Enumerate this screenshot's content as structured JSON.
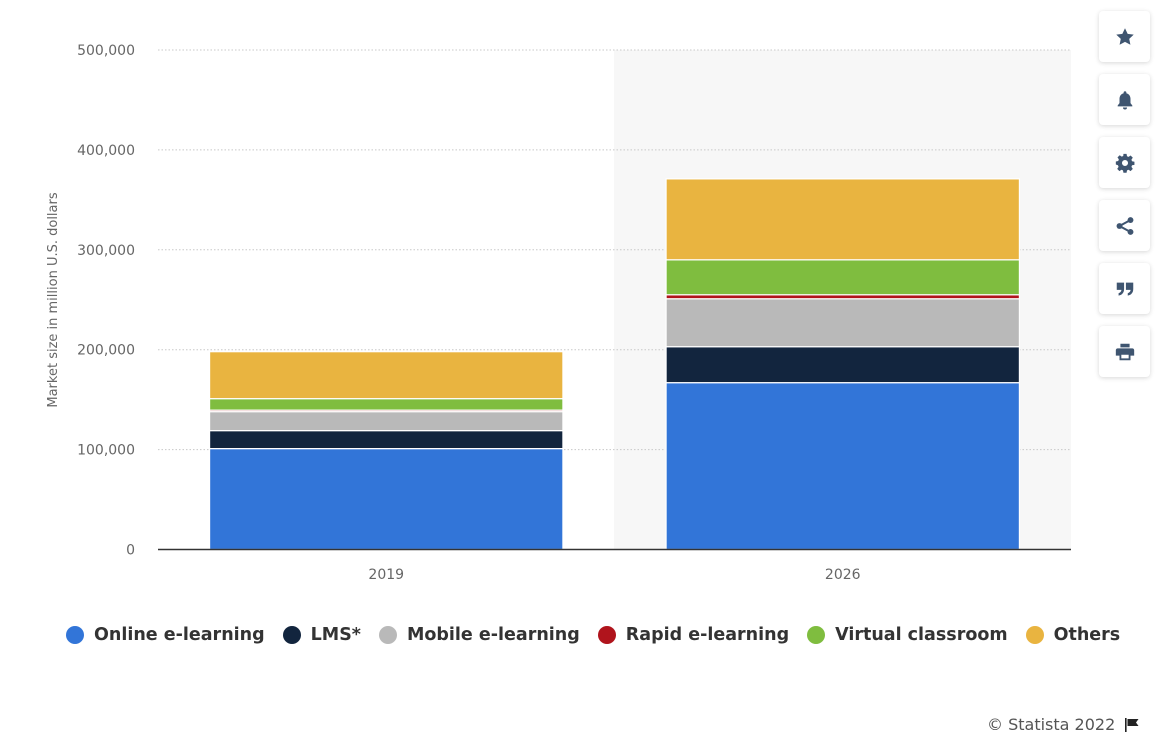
{
  "chart_data": {
    "type": "bar",
    "stacked": true,
    "title": "",
    "xlabel": "",
    "ylabel": "Market size in million U.S. dollars",
    "categories": [
      "2019",
      "2026"
    ],
    "ylim": [
      0,
      500000
    ],
    "yticks": [
      0,
      100000,
      200000,
      300000,
      400000,
      500000
    ],
    "ytick_labels": [
      "0",
      "100,000",
      "200,000",
      "300,000",
      "400,000",
      "500,000"
    ],
    "grid": true,
    "highlighted_category": "2026",
    "legend_position": "bottom",
    "series": [
      {
        "name": "Online e-learning",
        "color": "#3275d8",
        "values": [
          101000,
          167000
        ]
      },
      {
        "name": "LMS*",
        "color": "#12253e",
        "values": [
          18000,
          36000
        ]
      },
      {
        "name": "Mobile e-learning",
        "color": "#b9b9b9",
        "values": [
          19000,
          48000
        ]
      },
      {
        "name": "Rapid e-learning",
        "color": "#b0141c",
        "values": [
          1500,
          4000
        ]
      },
      {
        "name": "Virtual classroom",
        "color": "#7fbd3f",
        "values": [
          11500,
          35000
        ]
      },
      {
        "name": "Others",
        "color": "#e9b440",
        "values": [
          47000,
          81000
        ]
      }
    ]
  },
  "toolbar": {
    "buttons": [
      {
        "name": "favorite",
        "icon": "star-icon"
      },
      {
        "name": "notification",
        "icon": "bell-icon"
      },
      {
        "name": "settings",
        "icon": "gear-icon"
      },
      {
        "name": "share",
        "icon": "share-icon"
      },
      {
        "name": "citation",
        "icon": "quote-icon"
      },
      {
        "name": "print",
        "icon": "print-icon"
      }
    ]
  },
  "credit": {
    "text": "© Statista 2022",
    "icon": "flag-icon"
  },
  "colors": {
    "toolbar_icon": "#3f5570",
    "axis_text": "#666666",
    "highlight_band": "#f7f7f7"
  }
}
